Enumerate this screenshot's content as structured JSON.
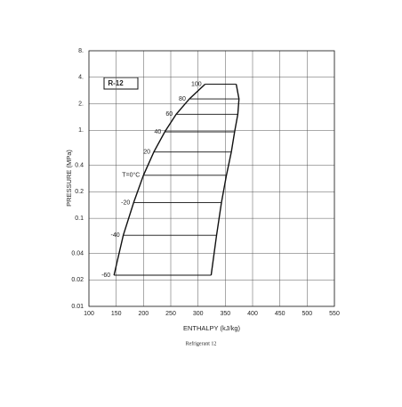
{
  "chart_data": {
    "type": "line",
    "label": "R-12",
    "caption": "Refrigerant 12",
    "xlabel": "ENTHALPY (kJ/kg)",
    "ylabel": "PRESSURE (MPa)",
    "yscale": "log",
    "grid": true,
    "xlim": [
      100,
      550
    ],
    "xticks": [
      100,
      150,
      200,
      250,
      300,
      350,
      400,
      450,
      500,
      550
    ],
    "ylim": [
      0.01,
      8
    ],
    "yticks": [
      0.01,
      0.02,
      0.04,
      0.1,
      0.2,
      0.4,
      {
        "value": 1,
        "label": "1."
      },
      {
        "value": 2,
        "label": "2."
      },
      {
        "value": 4,
        "label": "4."
      },
      {
        "value": 8,
        "label": "8."
      }
    ],
    "series": [
      {
        "color": "#111111",
        "x": [
          146,
          163,
          182,
          200,
          219,
          239,
          260,
          284,
          313
        ],
        "values": [
          0.0226,
          0.0642,
          0.151,
          0.308,
          0.567,
          0.961,
          1.52,
          2.27,
          3.34
        ],
        "point_labels": [
          "-60",
          "-40",
          "-20",
          "T=0°C",
          "20",
          "40",
          "60",
          "80",
          "100"
        ]
      },
      {
        "color": "#111111",
        "x": [
          324,
          334,
          343,
          352,
          361,
          367,
          373,
          375,
          370
        ],
        "values": [
          0.0226,
          0.0642,
          0.151,
          0.308,
          0.567,
          0.961,
          1.52,
          2.27,
          3.34
        ]
      }
    ]
  }
}
